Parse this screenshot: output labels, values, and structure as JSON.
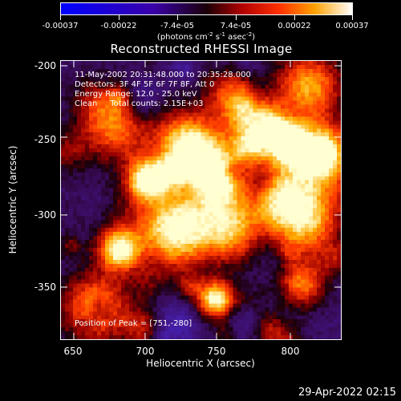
{
  "colorbar": {
    "tick_labels": [
      "-0.00037",
      "-0.00022",
      "-7.4e-05",
      "7.4e-05",
      "0.00022",
      "0.00037"
    ],
    "unit_parts": [
      "(photons cm",
      "-2",
      " s",
      "-1",
      " asec",
      "-2",
      ")"
    ]
  },
  "title": "Reconstructed RHESSI Image",
  "info_lines": [
    "11-May-2002 20:31:48.000 to 20:35:28.000",
    "Detectors: 3F 4F 5F 6F 7F 8F, Att 0",
    "Energy Range: 12.0 - 25.0 keV",
    "Clean     Total counts: 2.15E+03"
  ],
  "peak_text": "Position of Peak = [751,-280]",
  "axes": {
    "xlabel": "Heliocentric X (arcsec)",
    "ylabel": "Heliocentric Y (arcsec)",
    "xticks": [
      "650",
      "700",
      "750",
      "800"
    ],
    "yticks": [
      "-200",
      "-250",
      "-300",
      "-350"
    ]
  },
  "timestamp": "29-Apr-2022 02:15"
}
